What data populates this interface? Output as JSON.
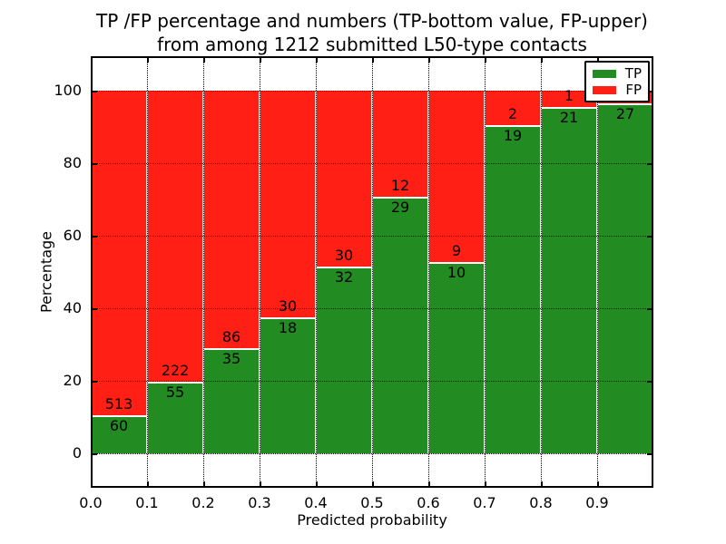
{
  "title": {
    "line1": "TP /FP percentage and numbers (TP-bottom value, FP-upper)",
    "line2": "from among 1212 submitted L50-type contacts"
  },
  "axes": {
    "xlabel": "Predicted probability",
    "ylabel": "Percentage",
    "x_tick_labels": [
      "0.0",
      "0.1",
      "0.2",
      "0.3",
      "0.4",
      "0.5",
      "0.6",
      "0.7",
      "0.8",
      "0.9"
    ],
    "y_tick_labels": [
      "0",
      "20",
      "40",
      "60",
      "80",
      "100"
    ],
    "y_tick_values": [
      0,
      20,
      40,
      60,
      80,
      100
    ],
    "xlim": [
      0.0,
      1.0
    ],
    "ylim": [
      -10,
      110
    ],
    "grid_style": "dotted"
  },
  "legend": {
    "position": "upper right",
    "entries": [
      {
        "label": "TP",
        "color": "#228B22"
      },
      {
        "label": "FP",
        "color": "#FF1F14"
      }
    ]
  },
  "colors": {
    "tp": "#228B22",
    "fp": "#FF1F14",
    "bar_edge": "#FFFFFF",
    "grid": "#000000",
    "background": "#FFFFFF",
    "text": "#000000"
  },
  "chart_data": {
    "type": "bar",
    "stacked": true,
    "percent_normalized": true,
    "title": "TP /FP percentage and numbers (TP-bottom value, FP-upper) from among 1212 submitted L50-type contacts",
    "xlabel": "Predicted probability",
    "ylabel": "Percentage",
    "total_contacts": 1212,
    "bin_width": 0.1,
    "categories": [
      "0.0-0.1",
      "0.1-0.2",
      "0.2-0.3",
      "0.3-0.4",
      "0.4-0.5",
      "0.5-0.6",
      "0.6-0.7",
      "0.7-0.8",
      "0.8-0.9",
      "0.9-1.0"
    ],
    "series": [
      {
        "name": "TP",
        "counts": [
          60,
          55,
          35,
          18,
          32,
          29,
          10,
          19,
          21,
          27
        ]
      },
      {
        "name": "FP",
        "counts": [
          513,
          222,
          86,
          30,
          30,
          12,
          9,
          2,
          1,
          1
        ]
      }
    ],
    "tp_percent_approx": [
      10.5,
      19.9,
      28.9,
      37.5,
      51.6,
      70.7,
      52.6,
      90.5,
      95.5,
      96.4
    ],
    "ylim": [
      -10,
      110
    ],
    "legend_position": "upper right",
    "note_last_fp_label_covered_by_legend": true
  }
}
